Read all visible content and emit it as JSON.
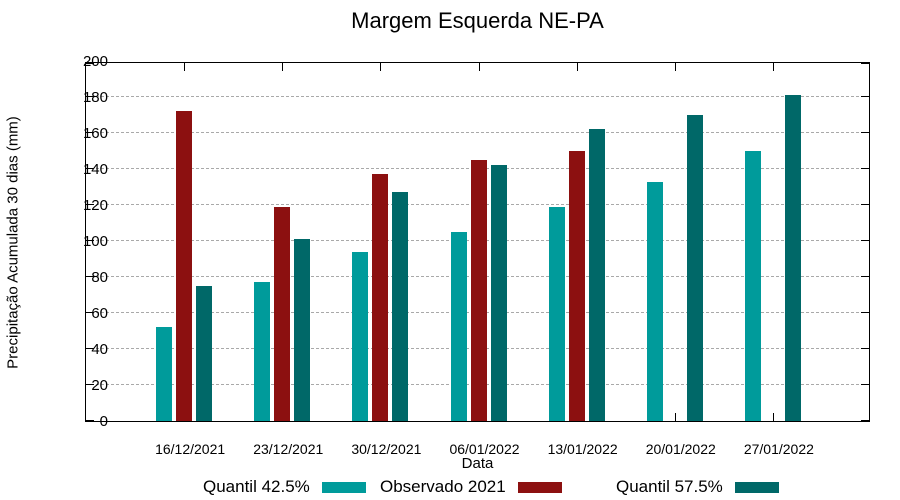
{
  "title": "Margem Esquerda NE-PA",
  "chart_data": {
    "type": "bar",
    "title": "Margem Esquerda NE-PA",
    "xlabel": "Data",
    "ylabel": "Precipitação Acumulada 30 dias (mm)",
    "ylim": [
      0,
      200
    ],
    "ytick_step": 20,
    "grid": "horizontal-dashed",
    "legend_position": "bottom",
    "categories": [
      "16/12/2021",
      "23/12/2021",
      "30/12/2021",
      "06/01/2022",
      "13/01/2022",
      "20/01/2022",
      "27/01/2022"
    ],
    "series": [
      {
        "name": "Quantil 42.5%",
        "color": "#009B9B",
        "values": [
          52,
          77,
          94,
          105,
          119,
          133,
          150
        ]
      },
      {
        "name": "Observado 2021",
        "color": "#8C1010",
        "values": [
          172,
          119,
          137,
          145,
          150,
          null,
          null
        ]
      },
      {
        "name": "Quantil 57.5%",
        "color": "#006868",
        "values": [
          75,
          101,
          127,
          142,
          162,
          170,
          181
        ]
      }
    ]
  },
  "colors": {
    "axis": "#000000",
    "grid": "#a9a9a9",
    "background": "#ffffff"
  }
}
